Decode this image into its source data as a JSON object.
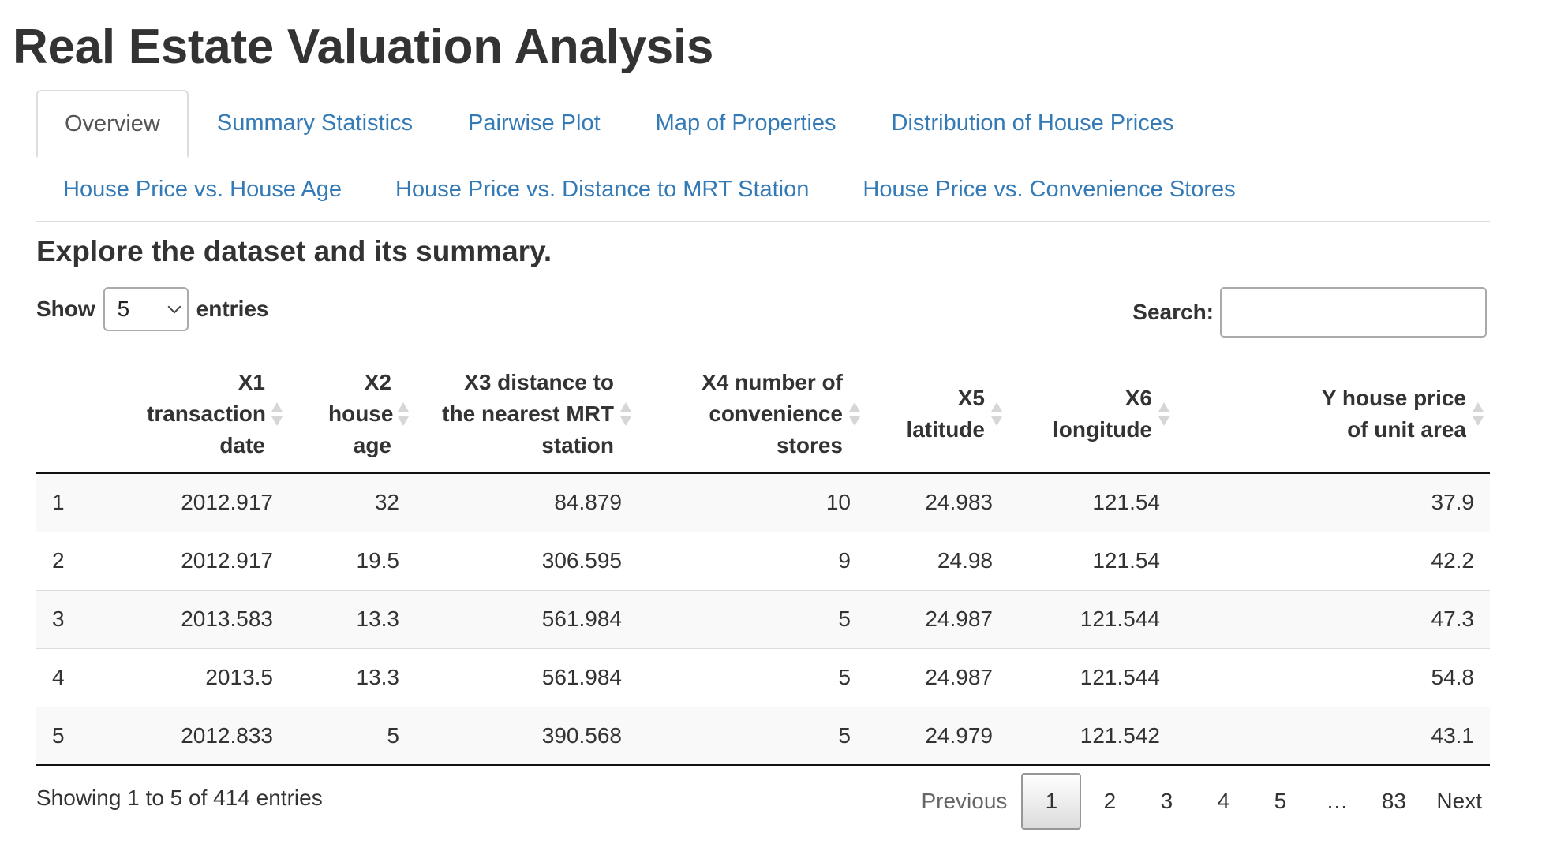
{
  "app": {
    "title": "Real Estate Valuation Analysis"
  },
  "tabs": {
    "row1": [
      {
        "label": "Overview",
        "active": true
      },
      {
        "label": "Summary Statistics"
      },
      {
        "label": "Pairwise Plot"
      },
      {
        "label": "Map of Properties"
      },
      {
        "label": "Distribution of House Prices"
      }
    ],
    "row2": [
      {
        "label": "House Price vs. House Age"
      },
      {
        "label": "House Price vs. Distance to MRT Station"
      },
      {
        "label": "House Price vs. Convenience Stores"
      }
    ]
  },
  "overview": {
    "subtitle": "Explore the dataset and its summary."
  },
  "length_menu": {
    "show_label": "Show",
    "entries_label": "entries",
    "selected": "5"
  },
  "search": {
    "label": "Search:",
    "value": "",
    "placeholder": ""
  },
  "table": {
    "columns": [
      {
        "label": ""
      },
      {
        "label": "X1 transaction date"
      },
      {
        "label": "X2 house age"
      },
      {
        "label": "X3 distance to the nearest MRT station"
      },
      {
        "label": "X4 number of convenience stores"
      },
      {
        "label": "X5 latitude"
      },
      {
        "label": "X6 longitude"
      },
      {
        "label": "Y house price of unit area"
      }
    ],
    "rows": [
      [
        "1",
        "2012.917",
        "32",
        "84.879",
        "10",
        "24.983",
        "121.54",
        "37.9"
      ],
      [
        "2",
        "2012.917",
        "19.5",
        "306.595",
        "9",
        "24.98",
        "121.54",
        "42.2"
      ],
      [
        "3",
        "2013.583",
        "13.3",
        "561.984",
        "5",
        "24.987",
        "121.544",
        "47.3"
      ],
      [
        "4",
        "2013.5",
        "13.3",
        "561.984",
        "5",
        "24.987",
        "121.544",
        "54.8"
      ],
      [
        "5",
        "2012.833",
        "5",
        "390.568",
        "5",
        "24.979",
        "121.542",
        "43.1"
      ]
    ]
  },
  "info": "Showing 1 to 5 of 414 entries",
  "pagination": {
    "previous": "Previous",
    "pages": [
      "1",
      "2",
      "3",
      "4",
      "5",
      "…",
      "83"
    ],
    "current": "1",
    "next": "Next"
  },
  "colors": {
    "link": "#337ab7",
    "text": "#333333",
    "border": "#dddddd"
  }
}
